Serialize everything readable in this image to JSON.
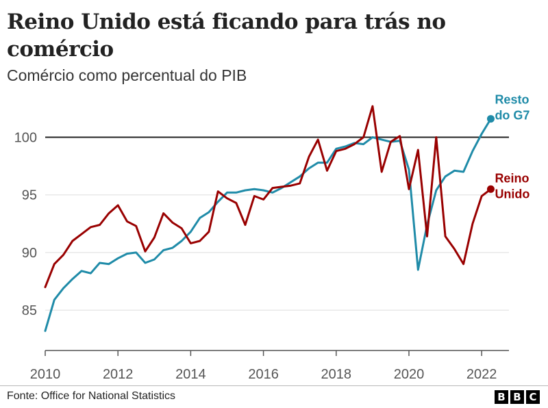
{
  "header": {
    "title": "Reino Unido está ficando para trás no comércio",
    "subtitle": "Comércio como percentual do PIB"
  },
  "footer": {
    "source": "Fonte: Office for National Statistics",
    "logo_letters": [
      "B",
      "B",
      "C"
    ]
  },
  "colors": {
    "g7": "#1f8ba8",
    "uk": "#990000",
    "baseline": "#222222",
    "grid": "#dddddd"
  },
  "chart_data": {
    "type": "line",
    "title": "Reino Unido está ficando para trás no comércio",
    "subtitle": "Comércio como percentual do PIB",
    "xlim": [
      2010,
      2022.75
    ],
    "ylim": [
      81.5,
      103
    ],
    "x_ticks": [
      2010,
      2012,
      2014,
      2016,
      2018,
      2020,
      2022
    ],
    "y_ticks": [
      85,
      90,
      95,
      100
    ],
    "grid": "horizontal",
    "reference_line": 100,
    "series": [
      {
        "name": "Resto do G7",
        "label_lines": [
          "Resto",
          "do G7"
        ],
        "color": "#1f8ba8",
        "x": [
          2010.0,
          2010.25,
          2010.5,
          2010.75,
          2011.0,
          2011.25,
          2011.5,
          2011.75,
          2012.0,
          2012.25,
          2012.5,
          2012.75,
          2013.0,
          2013.25,
          2013.5,
          2013.75,
          2014.0,
          2014.25,
          2014.5,
          2014.75,
          2015.0,
          2015.25,
          2015.5,
          2015.75,
          2016.0,
          2016.25,
          2016.5,
          2016.75,
          2017.0,
          2017.25,
          2017.5,
          2017.75,
          2018.0,
          2018.25,
          2018.5,
          2018.75,
          2019.0,
          2019.25,
          2019.5,
          2019.75,
          2020.0,
          2020.25,
          2020.5,
          2020.75,
          2021.0,
          2021.25,
          2021.5,
          2021.75,
          2022.0,
          2022.25
        ],
        "values": [
          83.2,
          85.9,
          86.9,
          87.7,
          88.4,
          88.2,
          89.1,
          89.0,
          89.5,
          89.9,
          90.0,
          89.1,
          89.4,
          90.2,
          90.4,
          91.0,
          91.8,
          93.0,
          93.5,
          94.4,
          95.2,
          95.2,
          95.4,
          95.5,
          95.4,
          95.2,
          95.6,
          96.1,
          96.6,
          97.3,
          97.8,
          97.8,
          99.0,
          99.2,
          99.5,
          99.4,
          100.0,
          99.8,
          99.6,
          99.7,
          97.2,
          88.5,
          92.4,
          95.4,
          96.6,
          97.1,
          97.0,
          98.8,
          100.3,
          101.6
        ]
      },
      {
        "name": "Reino Unido",
        "label_lines": [
          "Reino",
          "Unido"
        ],
        "color": "#990000",
        "x": [
          2010.0,
          2010.25,
          2010.5,
          2010.75,
          2011.0,
          2011.25,
          2011.5,
          2011.75,
          2012.0,
          2012.25,
          2012.5,
          2012.75,
          2013.0,
          2013.25,
          2013.5,
          2013.75,
          2014.0,
          2014.25,
          2014.5,
          2014.75,
          2015.0,
          2015.25,
          2015.5,
          2015.75,
          2016.0,
          2016.25,
          2016.5,
          2016.75,
          2017.0,
          2017.25,
          2017.5,
          2017.75,
          2018.0,
          2018.25,
          2018.5,
          2018.75,
          2019.0,
          2019.25,
          2019.5,
          2019.75,
          2020.0,
          2020.25,
          2020.5,
          2020.75,
          2021.0,
          2021.25,
          2021.5,
          2021.75,
          2022.0,
          2022.25
        ],
        "values": [
          87.0,
          89.0,
          89.8,
          91.0,
          91.6,
          92.2,
          92.4,
          93.4,
          94.1,
          92.7,
          92.3,
          90.1,
          91.3,
          93.4,
          92.6,
          92.1,
          90.8,
          91.0,
          91.8,
          95.3,
          94.7,
          94.3,
          92.4,
          94.9,
          94.6,
          95.6,
          95.7,
          95.8,
          96.0,
          98.3,
          99.8,
          97.1,
          98.8,
          99.0,
          99.4,
          100.0,
          102.7,
          97.0,
          99.6,
          100.1,
          95.5,
          98.9,
          91.4,
          100.0,
          91.4,
          90.3,
          89.0,
          92.5,
          94.9,
          95.5
        ]
      }
    ]
  }
}
